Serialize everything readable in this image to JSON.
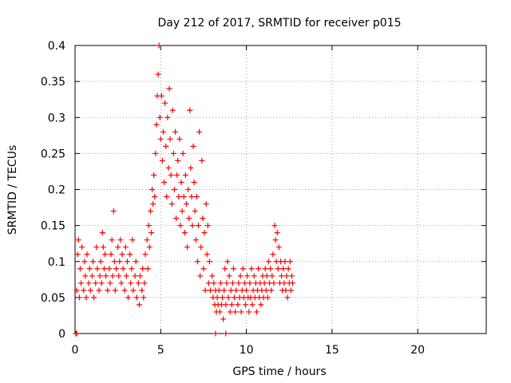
{
  "chart_data": {
    "type": "scatter",
    "title": "Day 212 of 2017, SRMTID for receiver p015",
    "xlabel": "GPS time / hours",
    "ylabel": "SRMTID / TECUs",
    "xlim": [
      0,
      24
    ],
    "ylim": [
      0,
      0.4
    ],
    "xticks": [
      0,
      5,
      10,
      15,
      20
    ],
    "xtick_labels": [
      "0",
      "5",
      "10",
      "15",
      "20"
    ],
    "yticks": [
      0,
      0.05,
      0.1,
      0.15,
      0.2,
      0.25,
      0.3,
      0.35,
      0.4
    ],
    "ytick_labels": [
      "0",
      "0.05",
      "0.1",
      "0.15",
      "0.2",
      "0.25",
      "0.3",
      "0.35",
      "0.4"
    ],
    "grid": true,
    "marker": "+",
    "marker_color": "#ff0000",
    "series": [
      {
        "name": "SRMTID p015",
        "points": [
          [
            0.05,
            0.0
          ],
          [
            0.1,
            0.06
          ],
          [
            0.15,
            0.11
          ],
          [
            0.2,
            0.13
          ],
          [
            0.25,
            0.05
          ],
          [
            0.3,
            0.09
          ],
          [
            0.35,
            0.07
          ],
          [
            0.4,
            0.12
          ],
          [
            0.5,
            0.06
          ],
          [
            0.55,
            0.1
          ],
          [
            0.6,
            0.08
          ],
          [
            0.65,
            0.05
          ],
          [
            0.7,
            0.11
          ],
          [
            0.8,
            0.07
          ],
          [
            0.85,
            0.09
          ],
          [
            0.9,
            0.06
          ],
          [
            1.0,
            0.08
          ],
          [
            1.05,
            0.1
          ],
          [
            1.1,
            0.05
          ],
          [
            1.2,
            0.07
          ],
          [
            1.25,
            0.12
          ],
          [
            1.3,
            0.09
          ],
          [
            1.4,
            0.06
          ],
          [
            1.45,
            0.08
          ],
          [
            1.5,
            0.1
          ],
          [
            1.55,
            0.07
          ],
          [
            1.6,
            0.14
          ],
          [
            1.65,
            0.12
          ],
          [
            1.7,
            0.09
          ],
          [
            1.75,
            0.11
          ],
          [
            1.8,
            0.08
          ],
          [
            1.9,
            0.06
          ],
          [
            2.0,
            0.09
          ],
          [
            2.05,
            0.07
          ],
          [
            2.1,
            0.11
          ],
          [
            2.15,
            0.13
          ],
          [
            2.2,
            0.08
          ],
          [
            2.25,
            0.17
          ],
          [
            2.3,
            0.1
          ],
          [
            2.35,
            0.06
          ],
          [
            2.4,
            0.09
          ],
          [
            2.5,
            0.12
          ],
          [
            2.55,
            0.08
          ],
          [
            2.6,
            0.1
          ],
          [
            2.65,
            0.13
          ],
          [
            2.7,
            0.07
          ],
          [
            2.75,
            0.11
          ],
          [
            2.8,
            0.09
          ],
          [
            2.9,
            0.06
          ],
          [
            2.95,
            0.12
          ],
          [
            3.0,
            0.08
          ],
          [
            3.05,
            0.1
          ],
          [
            3.1,
            0.05
          ],
          [
            3.2,
            0.11
          ],
          [
            3.25,
            0.07
          ],
          [
            3.3,
            0.09
          ],
          [
            3.35,
            0.13
          ],
          [
            3.4,
            0.06
          ],
          [
            3.5,
            0.08
          ],
          [
            3.55,
            0.1
          ],
          [
            3.6,
            0.05
          ],
          [
            3.7,
            0.07
          ],
          [
            3.75,
            0.04
          ],
          [
            3.8,
            0.08
          ],
          [
            3.9,
            0.06
          ],
          [
            3.95,
            0.09
          ],
          [
            4.0,
            0.05
          ],
          [
            4.05,
            0.07
          ],
          [
            4.1,
            0.11
          ],
          [
            4.2,
            0.13
          ],
          [
            4.25,
            0.09
          ],
          [
            4.3,
            0.15
          ],
          [
            4.35,
            0.12
          ],
          [
            4.4,
            0.17
          ],
          [
            4.45,
            0.14
          ],
          [
            4.5,
            0.2
          ],
          [
            4.55,
            0.18
          ],
          [
            4.6,
            0.22
          ],
          [
            4.65,
            0.19
          ],
          [
            4.7,
            0.25
          ],
          [
            4.75,
            0.29
          ],
          [
            4.8,
            0.33
          ],
          [
            4.85,
            0.36
          ],
          [
            4.9,
            0.4
          ],
          [
            4.95,
            0.3
          ],
          [
            5.0,
            0.27
          ],
          [
            5.05,
            0.33
          ],
          [
            5.1,
            0.24
          ],
          [
            5.15,
            0.28
          ],
          [
            5.2,
            0.21
          ],
          [
            5.25,
            0.32
          ],
          [
            5.3,
            0.26
          ],
          [
            5.35,
            0.19
          ],
          [
            5.4,
            0.3
          ],
          [
            5.45,
            0.23
          ],
          [
            5.5,
            0.34
          ],
          [
            5.55,
            0.27
          ],
          [
            5.6,
            0.22
          ],
          [
            5.65,
            0.18
          ],
          [
            5.7,
            0.31
          ],
          [
            5.75,
            0.25
          ],
          [
            5.8,
            0.2
          ],
          [
            5.85,
            0.28
          ],
          [
            5.9,
            0.16
          ],
          [
            5.95,
            0.22
          ],
          [
            6.0,
            0.24
          ],
          [
            6.05,
            0.19
          ],
          [
            6.1,
            0.27
          ],
          [
            6.15,
            0.15
          ],
          [
            6.2,
            0.21
          ],
          [
            6.25,
            0.17
          ],
          [
            6.3,
            0.25
          ],
          [
            6.35,
            0.19
          ],
          [
            6.4,
            0.14
          ],
          [
            6.45,
            0.22
          ],
          [
            6.5,
            0.18
          ],
          [
            6.55,
            0.12
          ],
          [
            6.6,
            0.2
          ],
          [
            6.65,
            0.16
          ],
          [
            6.7,
            0.31
          ],
          [
            6.75,
            0.23
          ],
          [
            6.8,
            0.19
          ],
          [
            6.85,
            0.15
          ],
          [
            6.9,
            0.26
          ],
          [
            6.95,
            0.21
          ],
          [
            7.0,
            0.17
          ],
          [
            7.05,
            0.13
          ],
          [
            7.1,
            0.19
          ],
          [
            7.15,
            0.1
          ],
          [
            7.2,
            0.15
          ],
          [
            7.25,
            0.28
          ],
          [
            7.3,
            0.08
          ],
          [
            7.35,
            0.12
          ],
          [
            7.4,
            0.24
          ],
          [
            7.45,
            0.16
          ],
          [
            7.5,
            0.09
          ],
          [
            7.55,
            0.14
          ],
          [
            7.6,
            0.06
          ],
          [
            7.65,
            0.18
          ],
          [
            7.7,
            0.11
          ],
          [
            7.75,
            0.15
          ],
          [
            7.8,
            0.07
          ],
          [
            7.85,
            0.1
          ],
          [
            7.9,
            0.06
          ],
          [
            8.0,
            0.08
          ],
          [
            8.05,
            0.05
          ],
          [
            8.1,
            0.07
          ],
          [
            8.15,
            0.04
          ],
          [
            8.2,
            0.06
          ],
          [
            8.25,
            0.03
          ],
          [
            8.3,
            0.05
          ],
          [
            8.35,
            0.04
          ],
          [
            8.4,
            0.06
          ],
          [
            8.45,
            0.03
          ],
          [
            8.5,
            0.07
          ],
          [
            8.55,
            0.04
          ],
          [
            8.6,
            0.05
          ],
          [
            8.65,
            0.02
          ],
          [
            8.7,
            0.06
          ],
          [
            8.75,
            0.09
          ],
          [
            8.8,
            0.04
          ],
          [
            8.85,
            0.07
          ],
          [
            8.9,
            0.1
          ],
          [
            8.95,
            0.05
          ],
          [
            9.0,
            0.08
          ],
          [
            9.05,
            0.03
          ],
          [
            9.1,
            0.06
          ],
          [
            9.15,
            0.04
          ],
          [
            9.2,
            0.07
          ],
          [
            9.25,
            0.09
          ],
          [
            9.3,
            0.05
          ],
          [
            9.35,
            0.03
          ],
          [
            9.4,
            0.06
          ],
          [
            9.5,
            0.04
          ],
          [
            9.55,
            0.07
          ],
          [
            9.6,
            0.05
          ],
          [
            9.65,
            0.08
          ],
          [
            9.7,
            0.03
          ],
          [
            9.75,
            0.06
          ],
          [
            9.8,
            0.09
          ],
          [
            9.85,
            0.05
          ],
          [
            9.9,
            0.07
          ],
          [
            9.95,
            0.04
          ],
          [
            10.0,
            0.06
          ],
          [
            10.05,
            0.08
          ],
          [
            10.1,
            0.05
          ],
          [
            10.15,
            0.03
          ],
          [
            10.2,
            0.07
          ],
          [
            10.25,
            0.05
          ],
          [
            10.3,
            0.09
          ],
          [
            10.35,
            0.04
          ],
          [
            10.4,
            0.06
          ],
          [
            10.45,
            0.08
          ],
          [
            10.5,
            0.05
          ],
          [
            10.55,
            0.07
          ],
          [
            10.6,
            0.03
          ],
          [
            10.65,
            0.06
          ],
          [
            10.7,
            0.09
          ],
          [
            10.75,
            0.05
          ],
          [
            10.8,
            0.07
          ],
          [
            10.85,
            0.04
          ],
          [
            10.9,
            0.06
          ],
          [
            10.95,
            0.08
          ],
          [
            11.0,
            0.05
          ],
          [
            11.05,
            0.07
          ],
          [
            11.1,
            0.09
          ],
          [
            11.15,
            0.06
          ],
          [
            11.2,
            0.08
          ],
          [
            11.25,
            0.05
          ],
          [
            11.3,
            0.1
          ],
          [
            11.35,
            0.07
          ],
          [
            11.4,
            0.09
          ],
          [
            11.45,
            0.06
          ],
          [
            11.5,
            0.08
          ],
          [
            11.55,
            0.11
          ],
          [
            11.6,
            0.07
          ],
          [
            11.65,
            0.15
          ],
          [
            11.7,
            0.13
          ],
          [
            11.75,
            0.1
          ],
          [
            11.8,
            0.14
          ],
          [
            11.85,
            0.09
          ],
          [
            11.9,
            0.12
          ],
          [
            11.95,
            0.07
          ],
          [
            12.0,
            0.1
          ],
          [
            12.05,
            0.08
          ],
          [
            12.1,
            0.06
          ],
          [
            12.15,
            0.09
          ],
          [
            12.2,
            0.07
          ],
          [
            12.25,
            0.1
          ],
          [
            12.3,
            0.06
          ],
          [
            12.35,
            0.08
          ],
          [
            12.4,
            0.05
          ],
          [
            12.45,
            0.09
          ],
          [
            12.5,
            0.07
          ],
          [
            12.55,
            0.1
          ],
          [
            12.6,
            0.06
          ],
          [
            12.65,
            0.08
          ],
          [
            12.7,
            0.07
          ],
          [
            8.2,
            0.0
          ],
          [
            8.8,
            0.0
          ],
          [
            0.1,
            0.0
          ]
        ]
      }
    ]
  }
}
